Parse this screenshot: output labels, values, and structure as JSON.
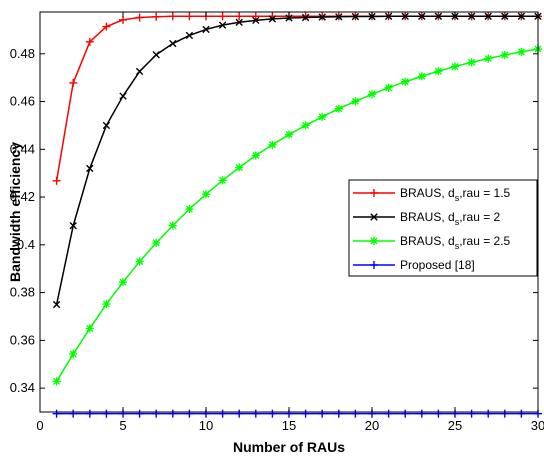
{
  "chart_data": {
    "type": "line",
    "title": "",
    "xlabel": "Number of RAUs",
    "ylabel": "Bandwidth efficiency",
    "xlim": [
      0,
      30
    ],
    "ylim": [
      0.33,
      0.4975
    ],
    "xticks": [
      0,
      5,
      10,
      15,
      20,
      25,
      30
    ],
    "xtick_labels": [
      "0",
      "5",
      "10",
      "15",
      "20",
      "25",
      "30"
    ],
    "yticks": [
      0.34,
      0.36,
      0.38,
      0.4,
      0.42,
      0.44,
      0.46,
      0.48
    ],
    "ytick_labels": [
      "0.34",
      "0.36",
      "0.38",
      "0.4",
      "0.42",
      "0.44",
      "0.46",
      "0.48"
    ],
    "grid": false,
    "legend_position": "right",
    "x": [
      1,
      2,
      3,
      4,
      5,
      6,
      7,
      8,
      9,
      10,
      11,
      12,
      13,
      14,
      15,
      16,
      17,
      18,
      19,
      20,
      21,
      22,
      23,
      24,
      25,
      26,
      27,
      28,
      29,
      30
    ],
    "series": [
      {
        "legend_prefix": "BRAUS, d",
        "legend_sub": "s",
        "legend_suffix": ",rau = 1.5",
        "color": "#ff0000",
        "marker": "plus",
        "values": [
          0.4268,
          0.4678,
          0.485,
          0.4914,
          0.4942,
          0.4952,
          0.4955,
          0.4957,
          0.4957,
          0.4957,
          0.4957,
          0.4957,
          0.4957,
          0.4957,
          0.4957,
          0.4957,
          0.4957,
          0.4957,
          0.4957,
          0.4957,
          0.4957,
          0.4957,
          0.4957,
          0.4957,
          0.4957,
          0.4957,
          0.4957,
          0.4957,
          0.4957,
          0.4957
        ]
      },
      {
        "legend_prefix": "BRAUS, d",
        "legend_sub": "s",
        "legend_suffix": ",rau = 2",
        "color": "#000000",
        "marker": "x",
        "values": [
          0.375,
          0.408,
          0.432,
          0.45,
          0.4623,
          0.4726,
          0.4796,
          0.4843,
          0.4877,
          0.4902,
          0.492,
          0.4932,
          0.494,
          0.4946,
          0.495,
          0.4952,
          0.4954,
          0.4955,
          0.4956,
          0.4956,
          0.4957,
          0.4957,
          0.4957,
          0.4957,
          0.4957,
          0.4957,
          0.4957,
          0.4957,
          0.4957,
          0.4957
        ]
      },
      {
        "legend_prefix": "BRAUS, d",
        "legend_sub": "s",
        "legend_suffix": ",rau = 2.5",
        "color": "#00ff00",
        "marker": "asterisk",
        "values": [
          0.3428,
          0.3543,
          0.365,
          0.3752,
          0.3844,
          0.393,
          0.4008,
          0.4081,
          0.415,
          0.4212,
          0.427,
          0.4324,
          0.4374,
          0.4419,
          0.4462,
          0.45,
          0.4536,
          0.457,
          0.4601,
          0.4631,
          0.4658,
          0.4683,
          0.4706,
          0.4727,
          0.4747,
          0.4764,
          0.478,
          0.4795,
          0.4808,
          0.482
        ]
      },
      {
        "legend_label": "Proposed [18]",
        "color": "#0000ff",
        "marker": "plus",
        "values": [
          0.3293,
          0.3293,
          0.3293,
          0.3293,
          0.3293,
          0.3293,
          0.3293,
          0.3293,
          0.3293,
          0.3293,
          0.3293,
          0.3293,
          0.3293,
          0.3293,
          0.3293,
          0.3293,
          0.3293,
          0.3293,
          0.3293,
          0.3293,
          0.3293,
          0.3293,
          0.3293,
          0.3293,
          0.3293,
          0.3293,
          0.3293,
          0.3293,
          0.3293,
          0.3293
        ]
      }
    ]
  }
}
